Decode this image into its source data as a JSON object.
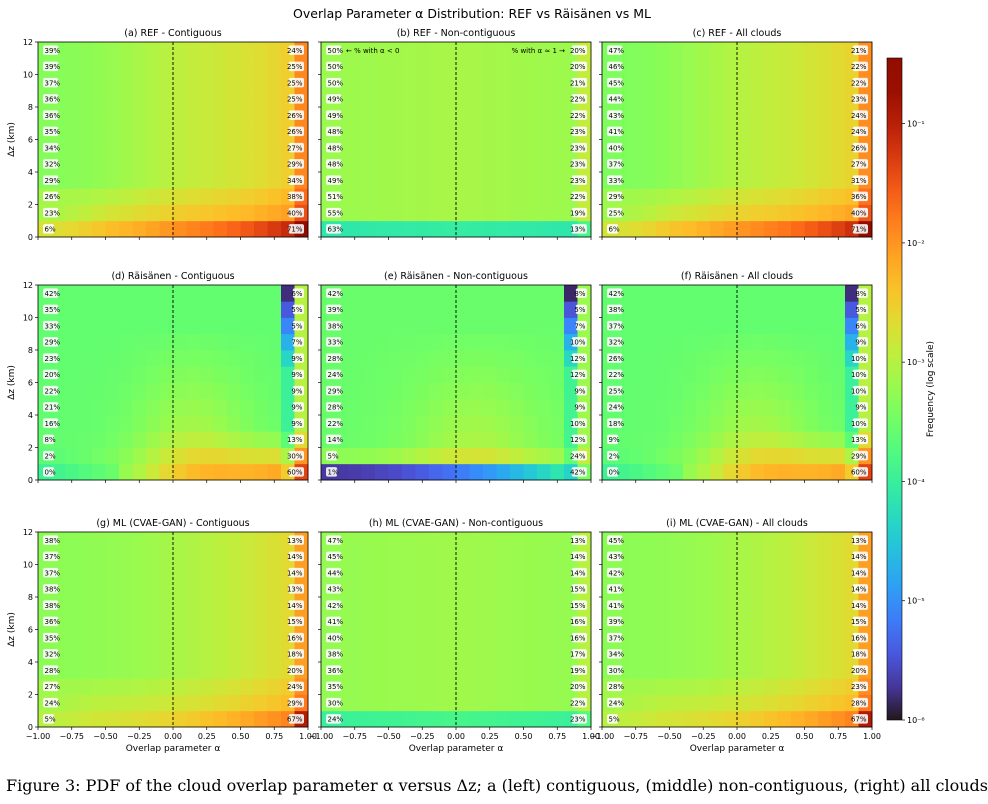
{
  "figure": {
    "suptitle": "Overlap Parameter α Distribution:  REF vs Räisänen vs ML",
    "caption": "Figure 3: PDF of the cloud overlap parameter α versus Δz; a (left) contiguous, (middle) non-contiguous, (right) all clouds",
    "colorbar_label": "Frequency (log scale)",
    "colorbar_ticks": [
      "10⁻¹",
      "10⁻²",
      "10⁻³",
      "10⁻⁴",
      "10⁻⁵",
      "10⁻⁶"
    ],
    "colorbar_exponents": [
      -1,
      -2,
      -3,
      -4,
      -5,
      -6
    ],
    "colorbar_range": [
      -6,
      -0.45
    ],
    "annotation_left": "← % with α < 0",
    "annotation_right": "% with α ≈ 1 →"
  },
  "chart_data": {
    "type": "heatmap",
    "xlabel": "Overlap parameter α",
    "ylabel": "Δz (km)",
    "xlim": [
      -1.0,
      1.0
    ],
    "ylim": [
      0,
      12
    ],
    "x_ticks": [
      "−1.00",
      "−0.75",
      "−0.50",
      "−0.25",
      "0.00",
      "0.25",
      "0.50",
      "0.75",
      "1.00"
    ],
    "x_tick_values": [
      -1,
      -0.75,
      -0.5,
      -0.25,
      0,
      0.25,
      0.5,
      0.75,
      1
    ],
    "y_ticks": [
      "0",
      "2",
      "4",
      "6",
      "8",
      "10",
      "12"
    ],
    "y_tick_values": [
      0,
      2,
      4,
      6,
      8,
      10,
      12
    ],
    "color_scale": "log",
    "colormap": "turbo",
    "row_bin_centers_km": [
      0.5,
      1.5,
      2.5,
      3.5,
      4.5,
      5.5,
      6.5,
      7.5,
      8.5,
      9.5,
      10.5,
      11.5
    ],
    "panels": [
      {
        "id": "a",
        "title": "(a) REF - Contiguous",
        "model": "REF",
        "pattern": "ref_contig",
        "pct_alpha_lt_0": [
          "6%",
          "23%",
          "26%",
          "29%",
          "32%",
          "34%",
          "35%",
          "36%",
          "36%",
          "37%",
          "39%",
          "39%"
        ],
        "pct_alpha_eq_1": [
          "71%",
          "40%",
          "38%",
          "34%",
          "29%",
          "27%",
          "26%",
          "26%",
          "25%",
          "25%",
          "25%",
          "24%"
        ]
      },
      {
        "id": "b",
        "title": "(b) REF - Non-contiguous",
        "model": "REF",
        "pattern": "ref_noncontig",
        "pct_alpha_lt_0": [
          "63%",
          "55%",
          "51%",
          "49%",
          "48%",
          "48%",
          "48%",
          "49%",
          "49%",
          "50%",
          "50%",
          "50%"
        ],
        "pct_alpha_eq_1": [
          "13%",
          "19%",
          "22%",
          "23%",
          "23%",
          "23%",
          "23%",
          "22%",
          "22%",
          "21%",
          "20%",
          "20%"
        ]
      },
      {
        "id": "c",
        "title": "(c) REF - All clouds",
        "model": "REF",
        "pattern": "ref_all",
        "pct_alpha_lt_0": [
          "6%",
          "25%",
          "29%",
          "33%",
          "37%",
          "40%",
          "41%",
          "43%",
          "44%",
          "45%",
          "46%",
          "47%"
        ],
        "pct_alpha_eq_1": [
          "71%",
          "40%",
          "36%",
          "31%",
          "27%",
          "26%",
          "24%",
          "24%",
          "23%",
          "22%",
          "22%",
          "21%"
        ]
      },
      {
        "id": "d",
        "title": "(d) Räisänen - Contiguous",
        "model": "Raisanen",
        "pattern": "rai_contig",
        "pct_alpha_lt_0": [
          "0%",
          "2%",
          "8%",
          "16%",
          "21%",
          "22%",
          "20%",
          "23%",
          "29%",
          "33%",
          "35%",
          "42%"
        ],
        "pct_alpha_eq_1": [
          "60%",
          "30%",
          "13%",
          "9%",
          "9%",
          "9%",
          "9%",
          "9%",
          "7%",
          "5%",
          "5%",
          "6%"
        ]
      },
      {
        "id": "e",
        "title": "(e) Räisänen - Non-contiguous",
        "model": "Raisanen",
        "pattern": "rai_noncontig",
        "pct_alpha_lt_0": [
          "1%",
          "5%",
          "14%",
          "22%",
          "28%",
          "29%",
          "24%",
          "28%",
          "33%",
          "38%",
          "39%",
          "42%"
        ],
        "pct_alpha_eq_1": [
          "42%",
          "24%",
          "12%",
          "10%",
          "9%",
          "9%",
          "12%",
          "12%",
          "10%",
          "7%",
          "5%",
          "8%"
        ]
      },
      {
        "id": "f",
        "title": "(f) Räisänen - All clouds",
        "model": "Raisanen",
        "pattern": "rai_all",
        "pct_alpha_lt_0": [
          "0%",
          "2%",
          "9%",
          "18%",
          "24%",
          "25%",
          "22%",
          "26%",
          "32%",
          "37%",
          "38%",
          "42%"
        ],
        "pct_alpha_eq_1": [
          "60%",
          "29%",
          "13%",
          "10%",
          "9%",
          "10%",
          "10%",
          "10%",
          "9%",
          "6%",
          "5%",
          "8%"
        ]
      },
      {
        "id": "g",
        "title": "(g) ML (CVAE-GAN) - Contiguous",
        "model": "ML",
        "pattern": "ml_contig",
        "pct_alpha_lt_0": [
          "5%",
          "24%",
          "27%",
          "28%",
          "32%",
          "35%",
          "36%",
          "38%",
          "38%",
          "37%",
          "37%",
          "38%"
        ],
        "pct_alpha_eq_1": [
          "67%",
          "29%",
          "24%",
          "20%",
          "18%",
          "16%",
          "15%",
          "14%",
          "13%",
          "14%",
          "14%",
          "13%"
        ]
      },
      {
        "id": "h",
        "title": "(h) ML (CVAE-GAN) - Non-contiguous",
        "model": "ML",
        "pattern": "ml_noncontig",
        "pct_alpha_lt_0": [
          "24%",
          "30%",
          "35%",
          "36%",
          "38%",
          "40%",
          "41%",
          "42%",
          "43%",
          "44%",
          "45%",
          "47%"
        ],
        "pct_alpha_eq_1": [
          "23%",
          "22%",
          "20%",
          "19%",
          "17%",
          "16%",
          "16%",
          "15%",
          "15%",
          "14%",
          "14%",
          "13%"
        ]
      },
      {
        "id": "i",
        "title": "(i) ML (CVAE-GAN) - All clouds",
        "model": "ML",
        "pattern": "ml_all",
        "pct_alpha_lt_0": [
          "5%",
          "24%",
          "28%",
          "30%",
          "34%",
          "37%",
          "39%",
          "41%",
          "41%",
          "42%",
          "43%",
          "45%"
        ],
        "pct_alpha_eq_1": [
          "67%",
          "28%",
          "23%",
          "20%",
          "18%",
          "16%",
          "15%",
          "14%",
          "14%",
          "14%",
          "14%",
          "13%"
        ]
      }
    ]
  }
}
